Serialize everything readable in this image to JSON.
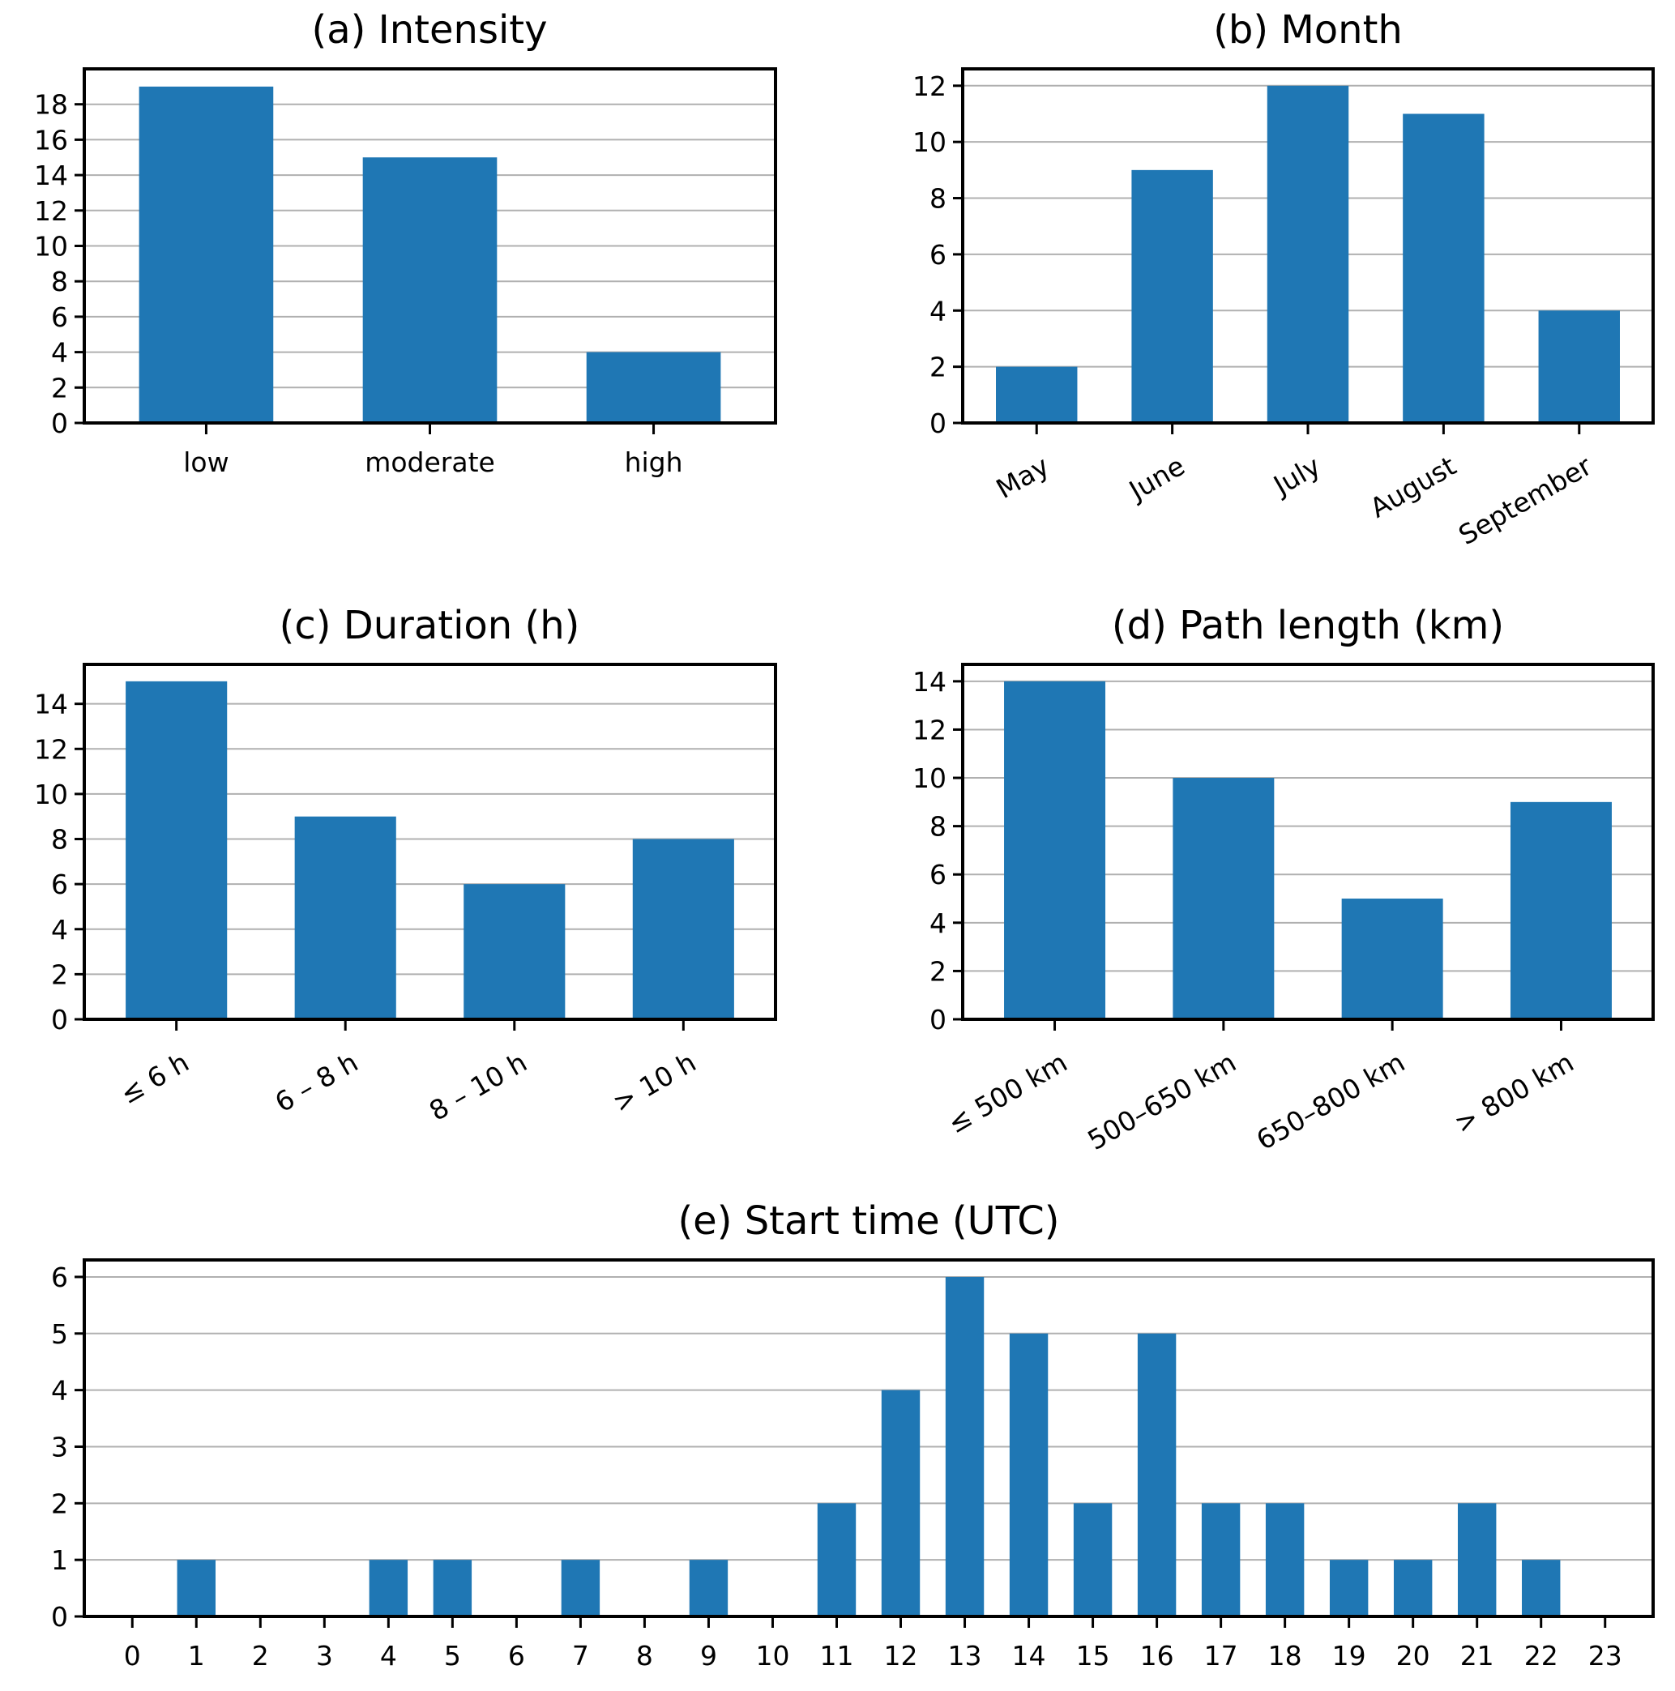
{
  "chart_data": [
    {
      "id": "a",
      "type": "bar",
      "title": "(a) Intensity",
      "categories": [
        "low",
        "moderate",
        "high"
      ],
      "values": [
        19,
        15,
        4
      ],
      "xlabel": "",
      "ylabel": "",
      "ylim": [
        0,
        20
      ],
      "yticks": [
        0,
        2,
        4,
        6,
        8,
        10,
        12,
        14,
        16,
        18
      ],
      "xtick_rotation": 0,
      "grid": "y",
      "color": "#1f77b4"
    },
    {
      "id": "b",
      "type": "bar",
      "title": "(b) Month",
      "categories": [
        "May",
        "June",
        "July",
        "August",
        "September"
      ],
      "values": [
        2,
        9,
        12,
        11,
        4
      ],
      "xlabel": "",
      "ylabel": "",
      "ylim": [
        0,
        12.6
      ],
      "yticks": [
        0,
        2,
        4,
        6,
        8,
        10,
        12
      ],
      "xtick_rotation": 30,
      "grid": "y",
      "color": "#1f77b4"
    },
    {
      "id": "c",
      "type": "bar",
      "title": "(c) Duration (h)",
      "categories": [
        "≤ 6 h",
        "6 – 8 h",
        "8 – 10 h",
        "> 10 h"
      ],
      "values": [
        15,
        9,
        6,
        8
      ],
      "xlabel": "",
      "ylabel": "",
      "ylim": [
        0,
        15.75
      ],
      "yticks": [
        0,
        2,
        4,
        6,
        8,
        10,
        12,
        14
      ],
      "xtick_rotation": 30,
      "grid": "y",
      "color": "#1f77b4"
    },
    {
      "id": "d",
      "type": "bar",
      "title": "(d) Path length (km)",
      "categories": [
        "≤ 500 km",
        "500–650 km",
        "650–800 km",
        "> 800 km"
      ],
      "values": [
        14,
        10,
        5,
        9
      ],
      "xlabel": "",
      "ylabel": "",
      "ylim": [
        0,
        14.7
      ],
      "yticks": [
        0,
        2,
        4,
        6,
        8,
        10,
        12,
        14
      ],
      "xtick_rotation": 30,
      "grid": "y",
      "color": "#1f77b4"
    },
    {
      "id": "e",
      "type": "bar",
      "title": "(e) Start time (UTC)",
      "categories": [
        "0",
        "1",
        "2",
        "3",
        "4",
        "5",
        "6",
        "7",
        "8",
        "9",
        "10",
        "11",
        "12",
        "13",
        "14",
        "15",
        "16",
        "17",
        "18",
        "19",
        "20",
        "21",
        "22",
        "23"
      ],
      "values": [
        0,
        1,
        0,
        0,
        1,
        1,
        0,
        1,
        0,
        1,
        0,
        2,
        4,
        6,
        5,
        2,
        5,
        2,
        2,
        1,
        1,
        2,
        1,
        0
      ],
      "xlabel": "",
      "ylabel": "",
      "ylim": [
        0,
        6.3
      ],
      "yticks": [
        0,
        1,
        2,
        3,
        4,
        5,
        6
      ],
      "xtick_rotation": 0,
      "grid": "y",
      "color": "#1f77b4"
    }
  ]
}
